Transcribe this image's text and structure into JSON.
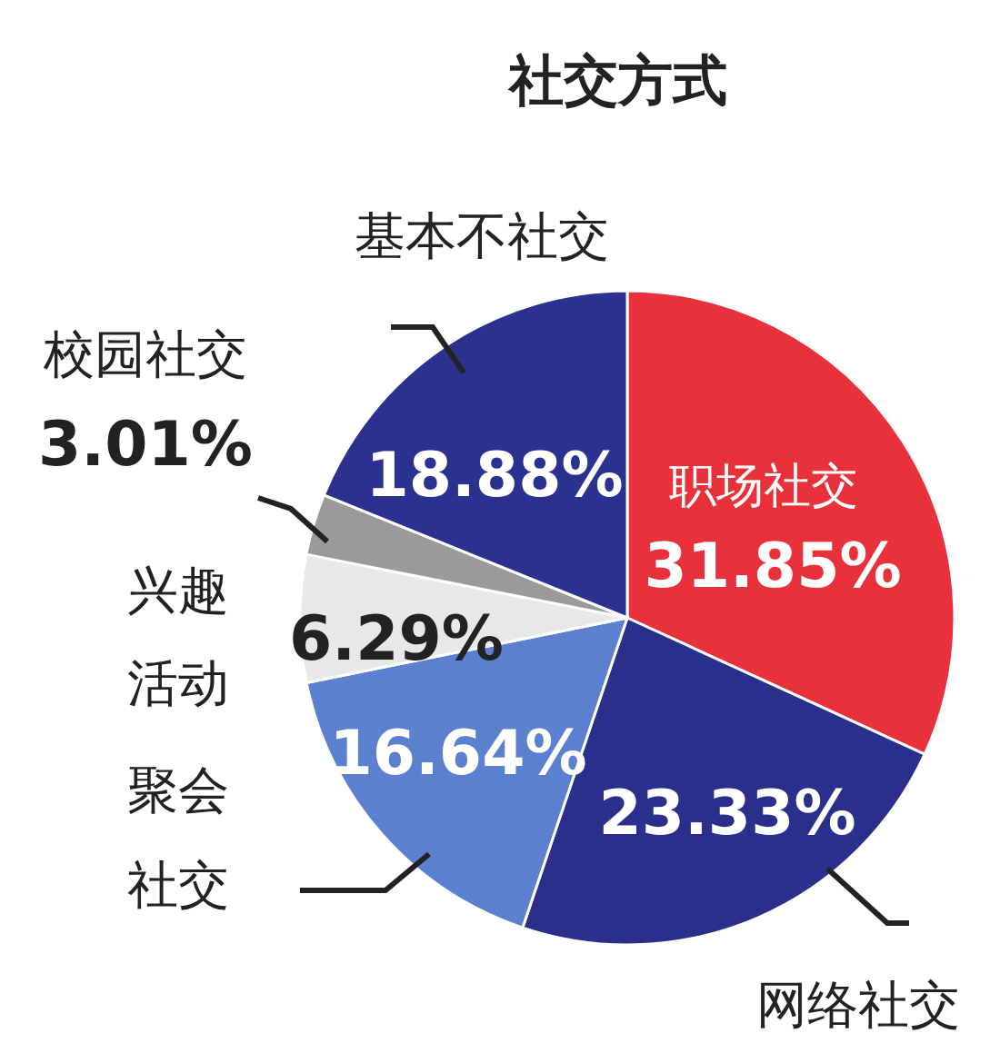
{
  "chart_data": {
    "type": "pie",
    "title": "社交方式",
    "categories": [
      "职场社交",
      "网络社交",
      "聚会社交",
      "兴趣活动",
      "校园社交",
      "基本不社交"
    ],
    "values": [
      31.85,
      23.33,
      16.64,
      6.29,
      3.01,
      18.88
    ],
    "value_labels": [
      "31.85%",
      "23.33%",
      "16.64%",
      "6.29%",
      "3.01%",
      "18.88%"
    ],
    "colors": [
      "#e8313b",
      "#2b2f8c",
      "#5b80cf",
      "#e8e8e8",
      "#9a9a9a",
      "#2b318f"
    ]
  }
}
